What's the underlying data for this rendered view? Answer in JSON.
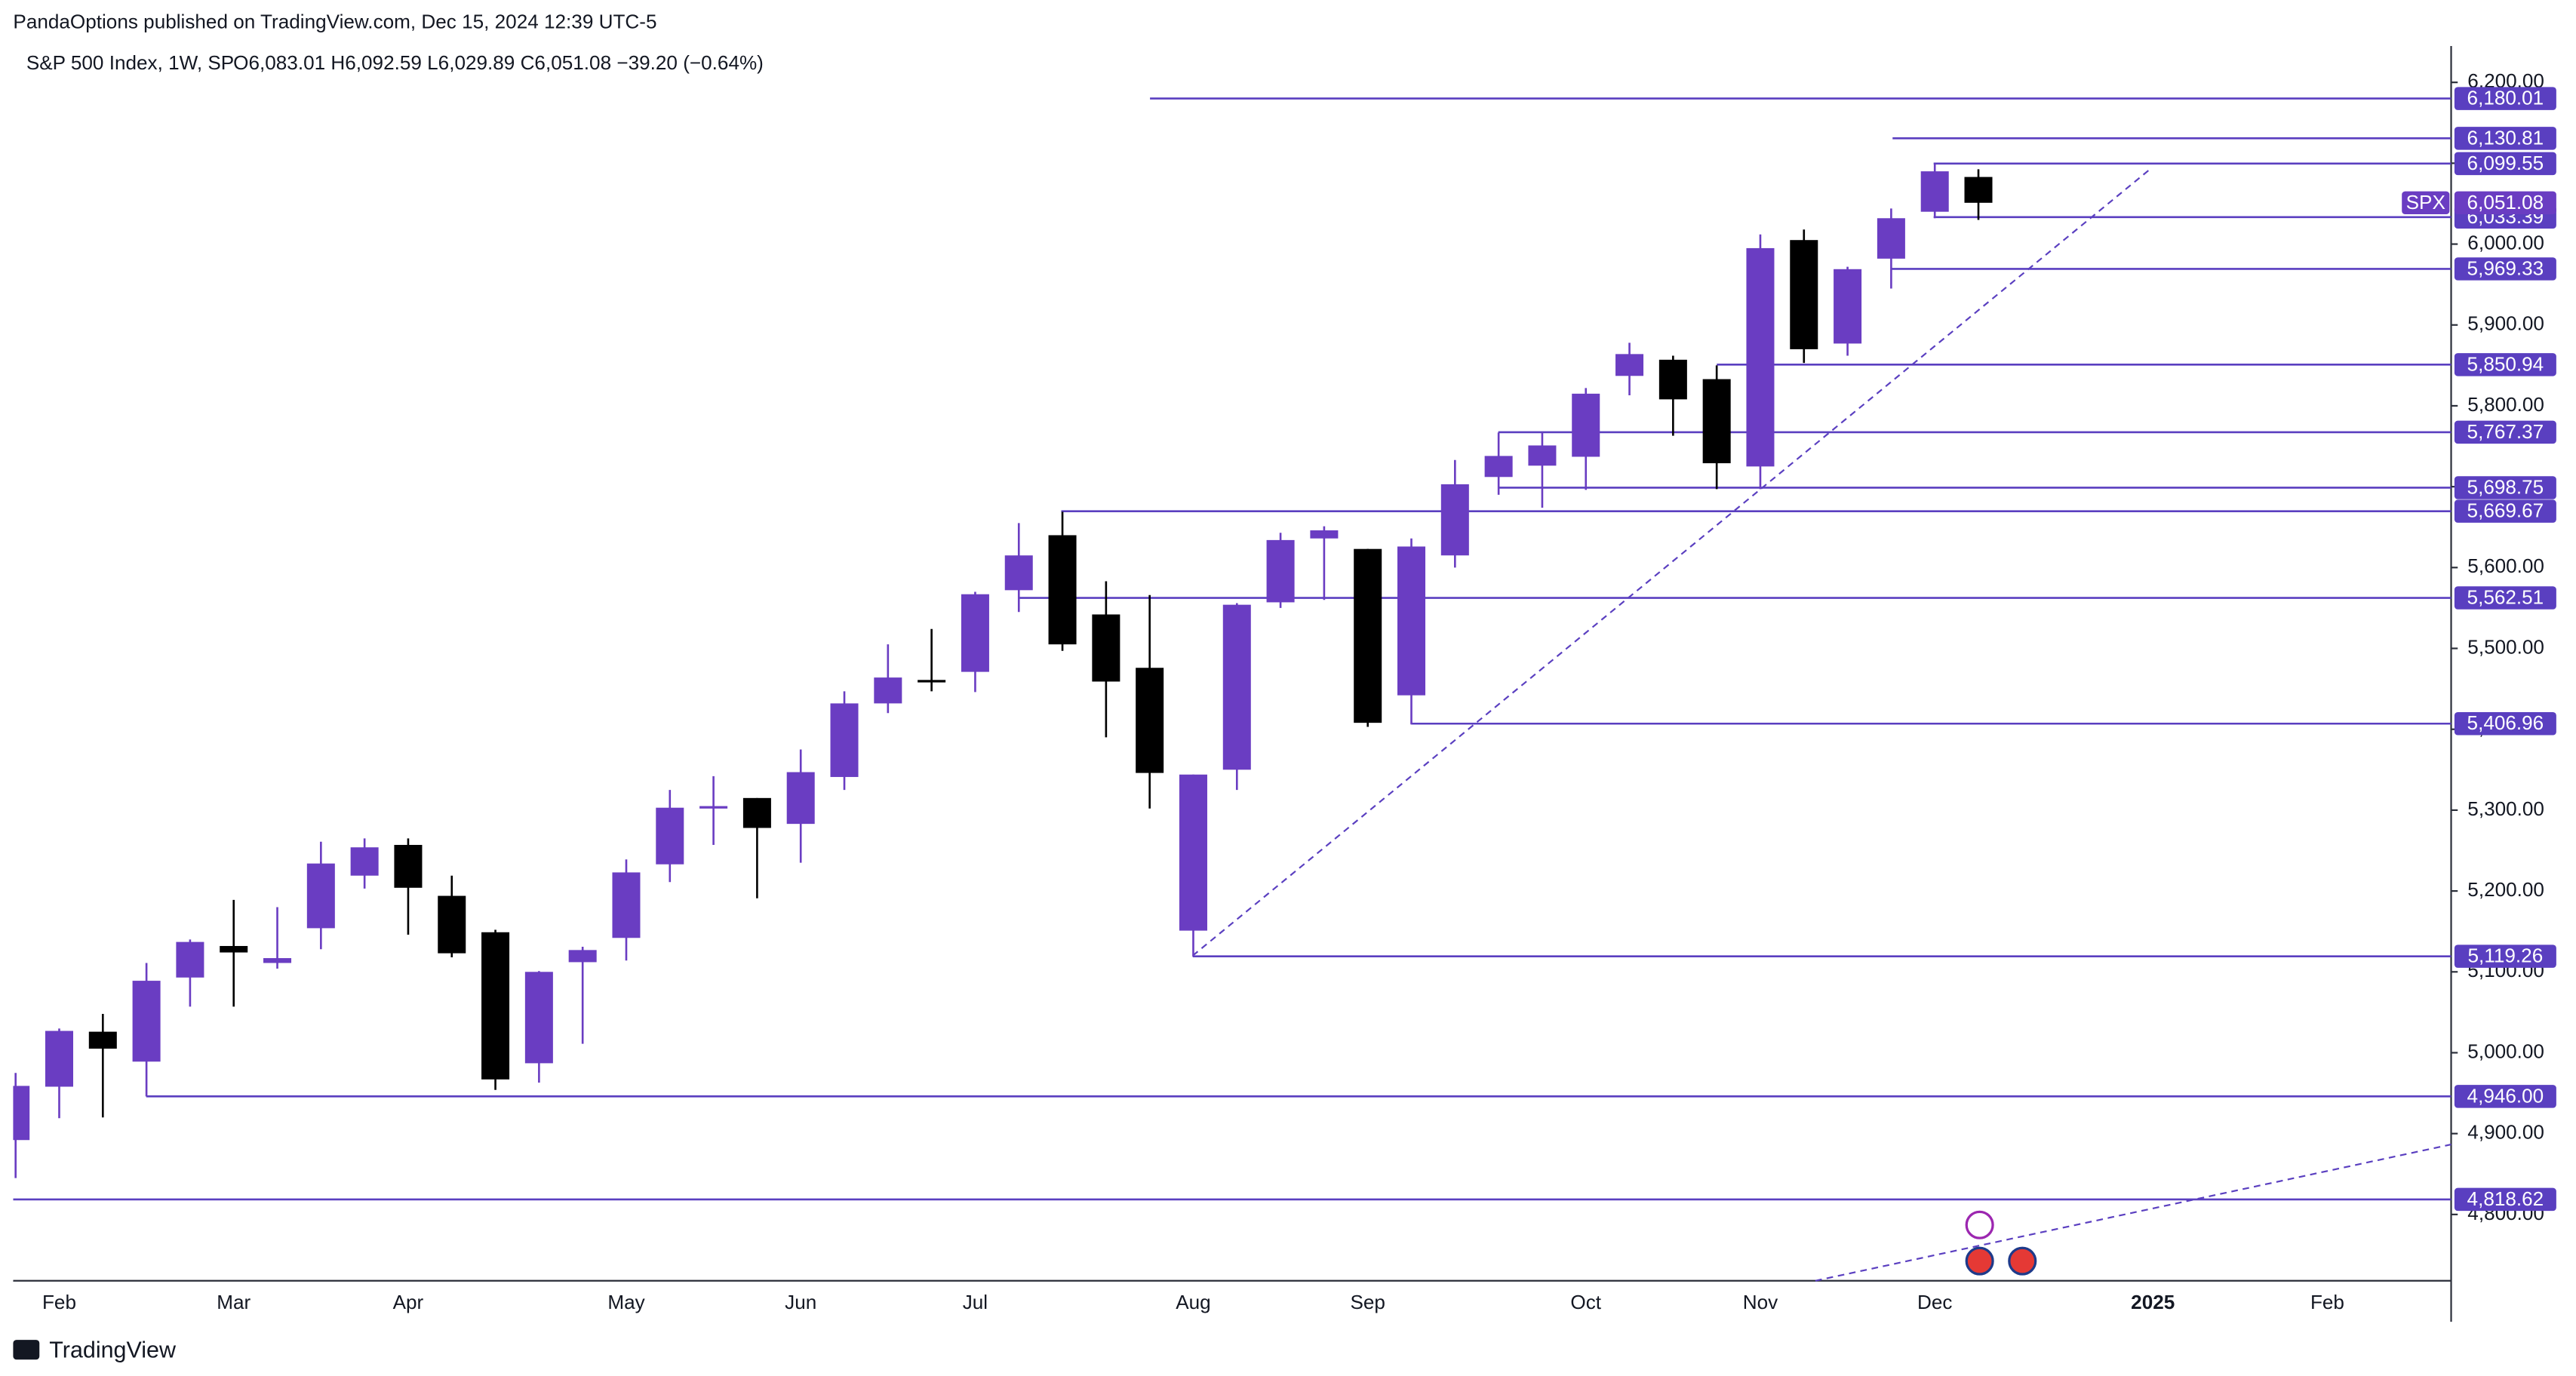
{
  "chart_data": {
    "type": "candlestick",
    "publisher_line": "PandaOptions published on TradingView.com, Dec 15, 2024 12:39 UTC-5",
    "title": "S&P 500 Index, 1W, SP",
    "ohlc_text": "O6,083.01 H6,092.59 L6,029.89 C6,051.08 −39.20 (−0.64%)",
    "brand": "TradingView",
    "categories": [
      null,
      "Feb",
      null,
      null,
      null,
      "Mar",
      null,
      null,
      null,
      "Apr",
      null,
      null,
      null,
      null,
      "May",
      null,
      null,
      null,
      "Jun",
      null,
      null,
      null,
      "Jul",
      null,
      null,
      null,
      null,
      "Aug",
      null,
      null,
      null,
      "Sep",
      null,
      null,
      null,
      null,
      "Oct",
      null,
      null,
      null,
      "Nov",
      null,
      null,
      null,
      "Dec",
      null,
      null,
      null,
      null,
      "2025",
      null,
      null,
      null,
      "Feb"
    ],
    "open": [
      4892,
      4958,
      5026,
      4989,
      5093,
      5132,
      5111,
      5154,
      5219,
      5257,
      5194,
      5149,
      4987,
      5112,
      5142,
      5233,
      5305,
      5315,
      5283,
      5341,
      5432,
      5461,
      5471,
      5572,
      5640,
      5542,
      5476,
      5151,
      5350,
      5557,
      5636,
      5623,
      5442,
      5615,
      5712,
      5726,
      5737,
      5837,
      5857,
      5833,
      5725,
      6005,
      5877,
      5982,
      6040,
      6083.01,
      null,
      null,
      null,
      null,
      null,
      null,
      null,
      null
    ],
    "high": [
      4975,
      5030,
      5048,
      5111,
      5140,
      5189,
      5180,
      5261,
      5265,
      5265,
      5219,
      5152,
      5101,
      5131,
      5239,
      5325,
      5342,
      5315,
      5375,
      5447,
      5505,
      5524,
      5570,
      5655,
      5669,
      5583,
      5566,
      5344,
      5556,
      5643,
      5651,
      5623,
      5636,
      5733,
      5767,
      5767,
      5822,
      5878,
      5862,
      5850,
      6012,
      6018,
      5972,
      6044,
      6099,
      6092.59,
      null,
      null,
      null,
      null,
      null,
      null,
      null,
      null
    ],
    "low": [
      4845,
      4919,
      4920,
      4946,
      5057,
      5057,
      5104,
      5128,
      5203,
      5146,
      5118,
      4954,
      4963,
      5011,
      5114,
      5211,
      5257,
      5191,
      5235,
      5325,
      5420,
      5447,
      5446,
      5545,
      5497,
      5390,
      5302,
      5119,
      5325,
      5550,
      5560,
      5403,
      5406,
      5600,
      5690,
      5674,
      5696,
      5813,
      5763,
      5697,
      5697,
      5853,
      5862,
      5945,
      6032,
      6029.89,
      null,
      null,
      null,
      null,
      null,
      null,
      null,
      null
    ],
    "close": [
      4959,
      5027,
      5005,
      5089,
      5137,
      5124,
      5117,
      5234,
      5254,
      5204,
      5123,
      4967,
      5100,
      5127,
      5223,
      5303,
      5305,
      5278,
      5347,
      5432,
      5464,
      5460,
      5567,
      5615,
      5505,
      5459,
      5346,
      5344,
      5554,
      5634,
      5646,
      5408,
      5626,
      5703,
      5738,
      5751,
      5815,
      5864,
      5808,
      5729,
      5995,
      5870,
      5969,
      6032,
      6090,
      6051.08,
      null,
      null,
      null,
      null,
      null,
      null,
      null,
      null
    ],
    "up_color": "#6a3dc2",
    "down_color": "#000000",
    "level_color": "#5a3fc0",
    "ylim": [
      4718,
      6245
    ],
    "yticks": [
      {
        "value": 4800,
        "label": "4,800.00"
      },
      {
        "value": 4900,
        "label": "4,900.00"
      },
      {
        "value": 5000,
        "label": "5,000.00"
      },
      {
        "value": 5100,
        "label": "5,100.00"
      },
      {
        "value": 5200,
        "label": "5,200.00"
      },
      {
        "value": 5300,
        "label": "5,300.00"
      },
      {
        "value": 5400,
        "label": "5,400.00"
      },
      {
        "value": 5500,
        "label": "5,500.00"
      },
      {
        "value": 5600,
        "label": "5,600.00"
      },
      {
        "value": 5700,
        "label": "5,700.00"
      },
      {
        "value": 5800,
        "label": "5,800.00"
      },
      {
        "value": 5900,
        "label": "5,900.00"
      },
      {
        "value": 6000,
        "label": "6,000.00"
      },
      {
        "value": 6100,
        "label": "6,100.00"
      },
      {
        "value": 6200,
        "label": "6,200.00"
      }
    ],
    "levels": [
      {
        "value": 6180.01,
        "label": "6,180.01"
      },
      {
        "value": 6130.81,
        "label": "6,130.81"
      },
      {
        "value": 6099.55,
        "label": "6,099.55"
      },
      {
        "value": 6033.39,
        "label": "6,033.39"
      },
      {
        "value": 5969.33,
        "label": "5,969.33"
      },
      {
        "value": 5850.94,
        "label": "5,850.94"
      },
      {
        "value": 5767.37,
        "label": "5,767.37"
      },
      {
        "value": 5698.75,
        "label": "5,698.75"
      },
      {
        "value": 5669.67,
        "label": "5,669.67"
      },
      {
        "value": 5562.51,
        "label": "5,562.51"
      },
      {
        "value": 5406.96,
        "label": "5,406.96"
      },
      {
        "value": 5119.26,
        "label": "5,119.26"
      },
      {
        "value": 4946.0,
        "label": "4,946.00"
      },
      {
        "value": 4818.62,
        "label": "4,818.62"
      }
    ],
    "last_price": {
      "symbol": "SPX",
      "value": 6051.08,
      "label": "6,051.08"
    }
  }
}
